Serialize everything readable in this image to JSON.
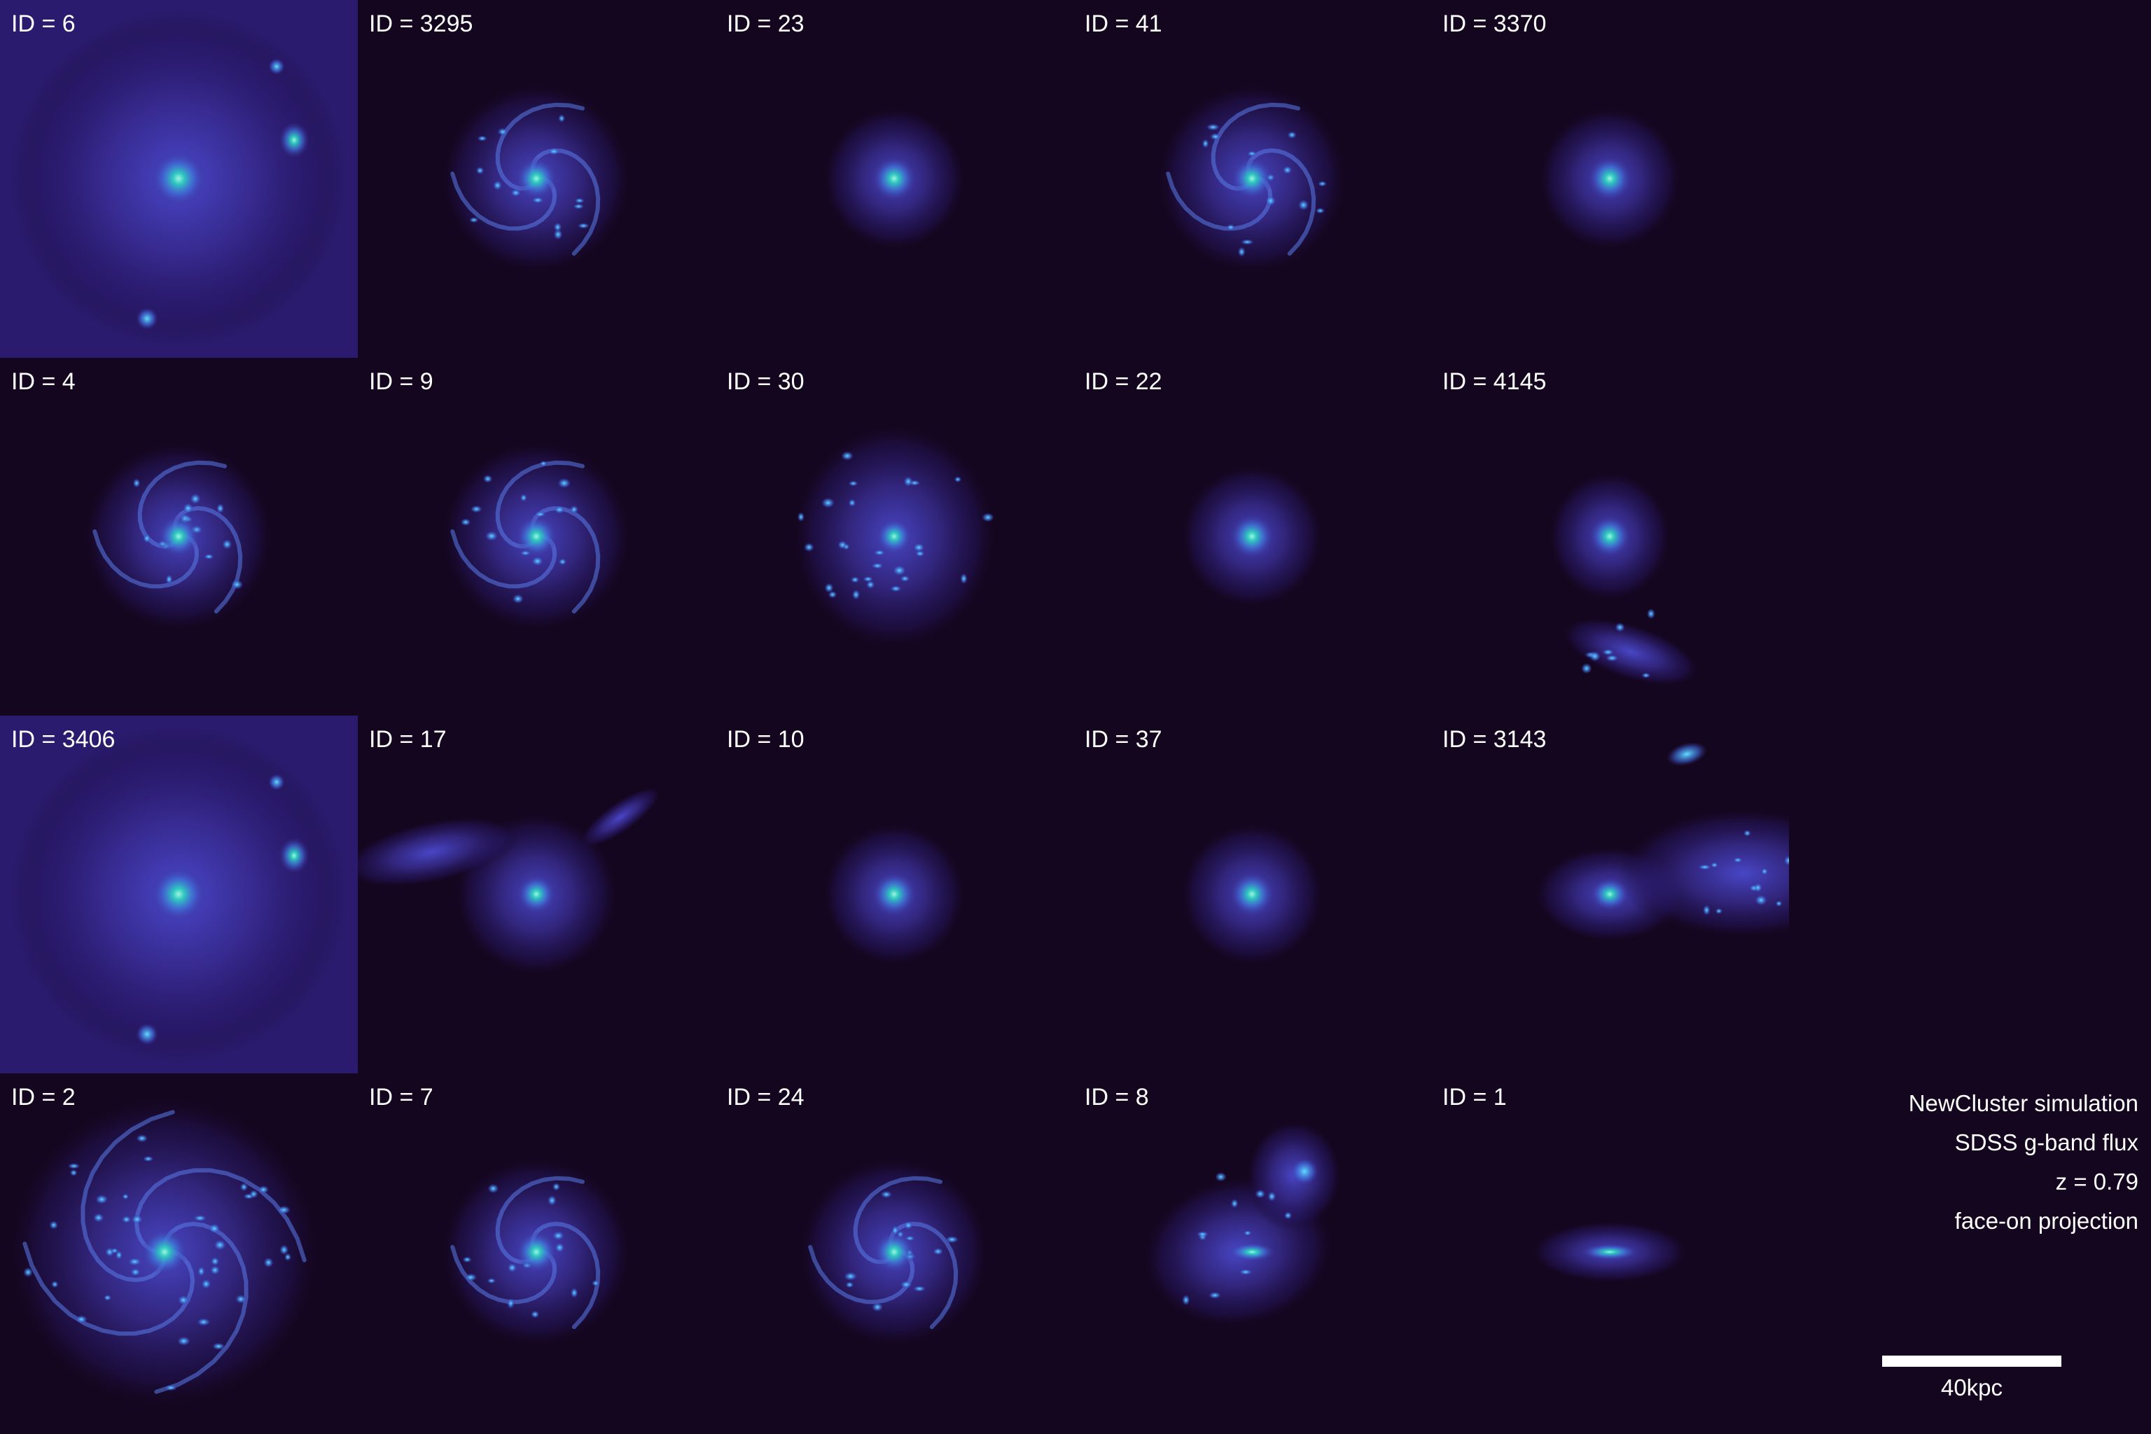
{
  "panels": [
    {
      "label": "ID = 6",
      "morph": "group",
      "bg": "halo"
    },
    {
      "label": "ID = 3295",
      "morph": "spiral"
    },
    {
      "label": "ID = 23",
      "morph": "smooth"
    },
    {
      "label": "ID = 41",
      "morph": "spiral"
    },
    {
      "label": "ID = 3370",
      "morph": "smooth"
    },
    {
      "label": "ID = 4",
      "morph": "spiral"
    },
    {
      "label": "ID = 9",
      "morph": "spiral"
    },
    {
      "label": "ID = 30",
      "morph": "clumpy"
    },
    {
      "label": "ID = 22",
      "morph": "smooth"
    },
    {
      "label": "ID = 4145",
      "morph": "smooth-pair"
    },
    {
      "label": "ID = 3406",
      "morph": "group",
      "bg": "halo"
    },
    {
      "label": "ID = 17",
      "morph": "tidal"
    },
    {
      "label": "ID = 10",
      "morph": "smooth"
    },
    {
      "label": "ID = 37",
      "morph": "smooth"
    },
    {
      "label": "ID = 3143",
      "morph": "merger"
    },
    {
      "label": "ID = 2",
      "morph": "spiral-big"
    },
    {
      "label": "ID = 7",
      "morph": "spiral"
    },
    {
      "label": "ID = 24",
      "morph": "spiral"
    },
    {
      "label": "ID = 8",
      "morph": "interacting"
    },
    {
      "label": "ID = 1",
      "morph": "edge-on"
    }
  ],
  "caption": {
    "line1": "NewCluster simulation",
    "line2": "SDSS g-band flux",
    "line3": "z = 0.79",
    "line4": "face-on projection"
  },
  "scale_bar": {
    "label": "40kpc"
  },
  "colors": {
    "background": "#14061e",
    "halo": "#3a2a8a",
    "disk": "#4a55d6",
    "core": "#2fd0c0",
    "text": "#ffffff"
  }
}
